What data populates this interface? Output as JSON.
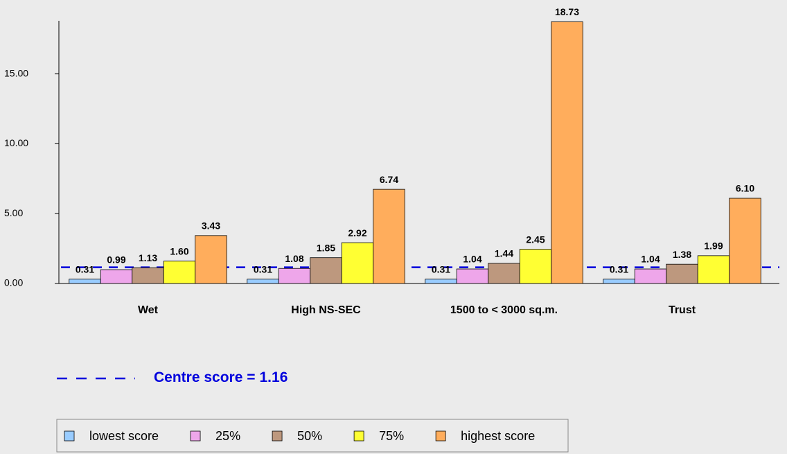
{
  "chart_data": {
    "type": "bar",
    "categories": [
      "Wet",
      "High NS-SEC",
      "1500 to < 3000 sq.m.",
      "Trust"
    ],
    "series": [
      {
        "name": "lowest score",
        "color": "#99ccff",
        "values": [
          0.31,
          0.31,
          0.31,
          0.31
        ],
        "value_labels": [
          "0.31",
          "0.31",
          "0.31",
          "0.31"
        ]
      },
      {
        "name": "25%",
        "color": "#eea6ea",
        "values": [
          0.99,
          1.08,
          1.04,
          1.04
        ],
        "value_labels": [
          "0.99",
          "1.08",
          "1.04",
          "1.04"
        ]
      },
      {
        "name": "50%",
        "color": "#bd987e",
        "values": [
          1.13,
          1.85,
          1.44,
          1.38
        ],
        "value_labels": [
          "1.13",
          "1.85",
          "1.44",
          "1.38"
        ]
      },
      {
        "name": "75%",
        "color": "#ffff33",
        "values": [
          1.6,
          2.92,
          2.45,
          1.99
        ],
        "value_labels": [
          "1.60",
          "2.92",
          "2.45",
          "1.99"
        ]
      },
      {
        "name": "highest score",
        "color": "#ffad5c",
        "values": [
          3.43,
          6.74,
          18.73,
          6.1
        ],
        "value_labels": [
          "3.43",
          "6.74",
          "18.73",
          "6.10"
        ]
      }
    ],
    "ylim": [
      0,
      18.8
    ],
    "yticks": [
      {
        "value": 0,
        "label": "0.00"
      },
      {
        "value": 5,
        "label": "5.00"
      },
      {
        "value": 10,
        "label": "10.00"
      },
      {
        "value": 15,
        "label": "15.00"
      }
    ],
    "centre_label": "Centre score =",
    "centre_score": 1.16,
    "centre_color": "#0000dd"
  }
}
